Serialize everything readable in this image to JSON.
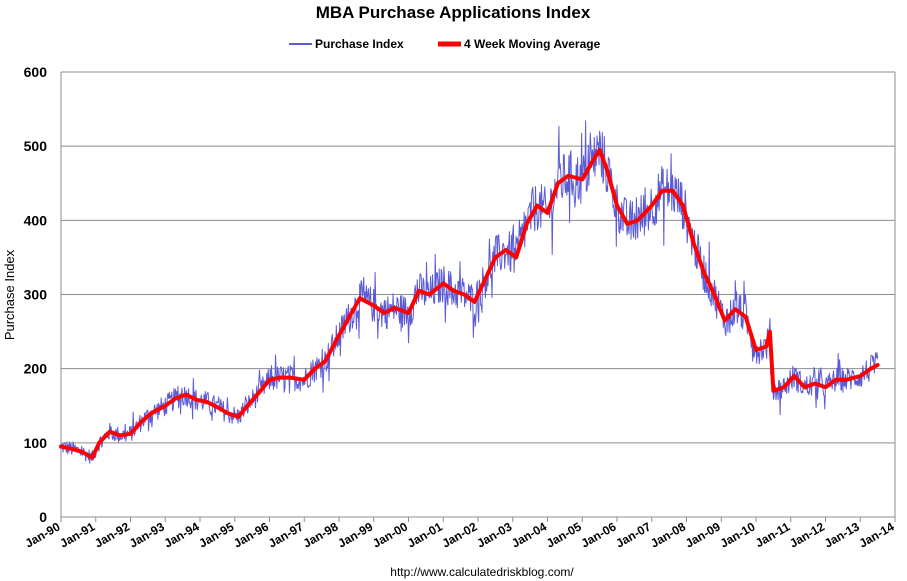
{
  "chart_data": {
    "type": "line",
    "title": "MBA Purchase Applications Index",
    "ylabel": "Purchase Index",
    "xlabel": "",
    "ylim": [
      0,
      600
    ],
    "yticks": [
      "0",
      "100",
      "200",
      "300",
      "400",
      "500",
      "600"
    ],
    "xticks": [
      "Jan-90",
      "Jan-91",
      "Jan-92",
      "Jan-93",
      "Jan-94",
      "Jan-95",
      "Jan-96",
      "Jan-97",
      "Jan-98",
      "Jan-99",
      "Jan-00",
      "Jan-01",
      "Jan-02",
      "Jan-03",
      "Jan-04",
      "Jan-05",
      "Jan-06",
      "Jan-07",
      "Jan-08",
      "Jan-09",
      "Jan-10",
      "Jan-11",
      "Jan-12",
      "Jan-13",
      "Jan-14"
    ],
    "xlim": [
      1990.0,
      2014.0
    ],
    "grid": "horizontal",
    "legend_position": "top",
    "source": "http://www.calculatedriskblog.com/",
    "series": [
      {
        "name": "Purchase Index",
        "color": "#5b5bd6",
        "note": "weekly values; noisy around the moving average"
      },
      {
        "name": "4 Week Moving Average",
        "color": "#ff0000",
        "x": [
          1990.0,
          1990.3,
          1990.6,
          1990.9,
          1991.1,
          1991.4,
          1991.7,
          1992.0,
          1992.3,
          1992.6,
          1993.0,
          1993.3,
          1993.6,
          1993.9,
          1994.2,
          1994.5,
          1994.8,
          1995.1,
          1995.4,
          1995.7,
          1996.0,
          1996.3,
          1996.6,
          1997.0,
          1997.3,
          1997.6,
          1998.0,
          1998.3,
          1998.6,
          1999.0,
          1999.3,
          1999.6,
          2000.0,
          2000.3,
          2000.6,
          2001.0,
          2001.3,
          2001.6,
          2001.9,
          2002.2,
          2002.5,
          2002.8,
          2003.1,
          2003.4,
          2003.7,
          2004.0,
          2004.3,
          2004.6,
          2005.0,
          2005.3,
          2005.5,
          2005.7,
          2006.0,
          2006.3,
          2006.6,
          2007.0,
          2007.3,
          2007.6,
          2007.9,
          2008.2,
          2008.5,
          2008.8,
          2009.1,
          2009.4,
          2009.7,
          2010.0,
          2010.3,
          2010.4,
          2010.5,
          2010.8,
          2011.1,
          2011.4,
          2011.7,
          2012.0,
          2012.3,
          2012.6,
          2013.0,
          2013.3,
          2013.5
        ],
        "values": [
          95,
          92,
          88,
          80,
          100,
          115,
          110,
          112,
          128,
          140,
          150,
          160,
          165,
          158,
          155,
          148,
          140,
          135,
          152,
          168,
          185,
          188,
          188,
          185,
          200,
          210,
          245,
          270,
          295,
          285,
          275,
          282,
          275,
          305,
          300,
          315,
          305,
          300,
          290,
          320,
          350,
          360,
          350,
          395,
          420,
          410,
          450,
          460,
          455,
          480,
          495,
          470,
          420,
          395,
          400,
          420,
          440,
          440,
          420,
          370,
          330,
          300,
          265,
          280,
          270,
          225,
          230,
          250,
          170,
          175,
          190,
          175,
          180,
          175,
          185,
          185,
          190,
          200,
          205
        ]
      }
    ]
  }
}
